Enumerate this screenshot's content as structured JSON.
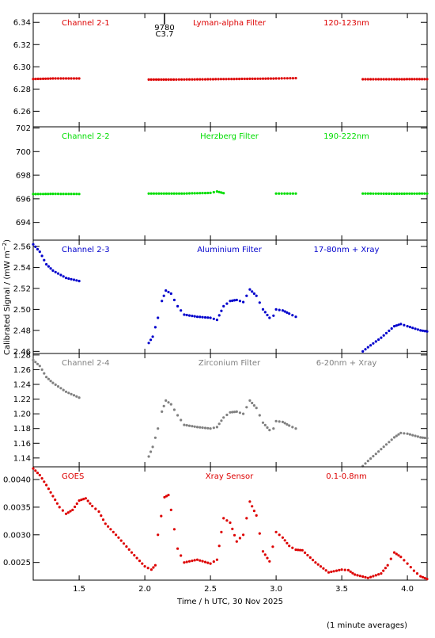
{
  "chart_data": {
    "type": "scatter",
    "x_axis_label": "Time / h UTC, 30 Nov 2025",
    "y_axis_label": "Calibrated Signal / (mW m",
    "y_axis_label_exp": "−2",
    "y_axis_label_end": ")",
    "footnote": "(1 minute averages)",
    "xlim": [
      1.15,
      4.15
    ],
    "x_ticks": [
      1.5,
      2.0,
      2.5,
      3.0,
      3.5,
      4.0
    ],
    "x_tick_labels": [
      "1.5",
      "2.0",
      "2.5",
      "3.0",
      "3.5",
      "4.0"
    ],
    "event_marker": {
      "x": 2.15,
      "label1": "9780",
      "label2": "C3.7"
    },
    "panels": [
      {
        "label": "Channel 2-1",
        "filter": "Lyman-alpha Filter",
        "band": "120-123nm",
        "color": "#dd0000",
        "ylim": [
          6.246,
          6.348
        ],
        "y_ticks": [
          6.26,
          6.28,
          6.3,
          6.32,
          6.34
        ],
        "y_tick_labels": [
          "6.26",
          "6.28",
          "6.30",
          "6.32",
          "6.34"
        ],
        "points": [
          [
            1.15,
            6.289
          ],
          [
            1.3,
            6.2895
          ],
          [
            1.5,
            6.2895
          ],
          [
            2.03,
            6.2885
          ],
          [
            2.2,
            6.2885
          ],
          [
            2.5,
            6.2888
          ],
          [
            2.8,
            6.2892
          ],
          [
            3.0,
            6.2895
          ],
          [
            3.15,
            6.2898
          ],
          [
            3.66,
            6.2888
          ],
          [
            3.9,
            6.2888
          ],
          [
            4.15,
            6.2889
          ]
        ]
      },
      {
        "label": "Channel 2-2",
        "filter": "Herzberg Filter",
        "band": "190-222nm",
        "color": "#00dd00",
        "ylim": [
          692.5,
          702.1
        ],
        "y_ticks": [
          694,
          696,
          698,
          700,
          702
        ],
        "y_tick_labels": [
          "694",
          "696",
          "698",
          "700",
          "702"
        ],
        "points": [
          [
            1.15,
            696.4
          ],
          [
            1.3,
            696.42
          ],
          [
            1.5,
            696.41
          ],
          [
            2.03,
            696.45
          ],
          [
            2.3,
            696.45
          ],
          [
            2.5,
            696.5
          ],
          [
            2.55,
            696.62
          ],
          [
            2.6,
            696.48
          ],
          [
            3.0,
            696.45
          ],
          [
            3.15,
            696.45
          ],
          [
            3.66,
            696.45
          ],
          [
            3.9,
            696.43
          ],
          [
            4.15,
            696.45
          ]
        ]
      },
      {
        "label": "Channel 2-3",
        "filter": "Aluminium Filter",
        "band": "17-80nm + Xray",
        "color": "#0000cc",
        "ylim": [
          2.458,
          2.566
        ],
        "y_ticks": [
          2.46,
          2.48,
          2.5,
          2.52,
          2.54,
          2.56
        ],
        "y_tick_labels": [
          "2.46",
          "2.48",
          "2.50",
          "2.52",
          "2.54",
          "2.56"
        ],
        "points": [
          [
            1.15,
            2.562
          ],
          [
            1.2,
            2.555
          ],
          [
            1.25,
            2.543
          ],
          [
            1.3,
            2.537
          ],
          [
            1.4,
            2.53
          ],
          [
            1.5,
            2.527
          ],
          [
            2.03,
            2.468
          ],
          [
            2.06,
            2.474
          ],
          [
            2.1,
            2.492
          ],
          [
            2.13,
            2.508
          ],
          [
            2.16,
            2.518
          ],
          [
            2.2,
            2.515
          ],
          [
            2.25,
            2.503
          ],
          [
            2.3,
            2.495
          ],
          [
            2.4,
            2.493
          ],
          [
            2.5,
            2.492
          ],
          [
            2.55,
            2.49
          ],
          [
            2.6,
            2.503
          ],
          [
            2.65,
            2.508
          ],
          [
            2.7,
            2.509
          ],
          [
            2.75,
            2.507
          ],
          [
            2.8,
            2.519
          ],
          [
            2.85,
            2.513
          ],
          [
            2.9,
            2.5
          ],
          [
            2.95,
            2.492
          ],
          [
            2.98,
            2.494
          ],
          [
            3.0,
            2.5
          ],
          [
            3.05,
            2.499
          ],
          [
            3.1,
            2.496
          ],
          [
            3.15,
            2.493
          ],
          [
            3.66,
            2.46
          ],
          [
            3.7,
            2.464
          ],
          [
            3.8,
            2.473
          ],
          [
            3.9,
            2.484
          ],
          [
            3.95,
            2.486
          ],
          [
            4.0,
            2.484
          ],
          [
            4.1,
            2.48
          ],
          [
            4.15,
            2.479
          ]
        ]
      },
      {
        "label": "Channel 2-4",
        "filter": "Zirconium Filter",
        "band": "6-20nm + Xray",
        "color": "#808080",
        "ylim": [
          1.128,
          1.282
        ],
        "y_ticks": [
          1.14,
          1.16,
          1.18,
          1.2,
          1.22,
          1.24,
          1.26,
          1.28
        ],
        "y_tick_labels": [
          "1.14",
          "1.16",
          "1.18",
          "1.20",
          "1.22",
          "1.24",
          "1.26",
          "1.28"
        ],
        "points": [
          [
            1.15,
            1.273
          ],
          [
            1.2,
            1.265
          ],
          [
            1.25,
            1.25
          ],
          [
            1.3,
            1.242
          ],
          [
            1.4,
            1.23
          ],
          [
            1.5,
            1.222
          ],
          [
            2.03,
            1.142
          ],
          [
            2.06,
            1.155
          ],
          [
            2.1,
            1.18
          ],
          [
            2.13,
            1.203
          ],
          [
            2.16,
            1.218
          ],
          [
            2.2,
            1.213
          ],
          [
            2.25,
            1.198
          ],
          [
            2.3,
            1.185
          ],
          [
            2.4,
            1.182
          ],
          [
            2.5,
            1.18
          ],
          [
            2.55,
            1.182
          ],
          [
            2.6,
            1.195
          ],
          [
            2.65,
            1.202
          ],
          [
            2.7,
            1.203
          ],
          [
            2.75,
            1.2
          ],
          [
            2.8,
            1.218
          ],
          [
            2.85,
            1.208
          ],
          [
            2.9,
            1.188
          ],
          [
            2.95,
            1.178
          ],
          [
            2.98,
            1.18
          ],
          [
            3.0,
            1.19
          ],
          [
            3.05,
            1.189
          ],
          [
            3.1,
            1.184
          ],
          [
            3.15,
            1.18
          ],
          [
            3.66,
            1.129
          ],
          [
            3.7,
            1.136
          ],
          [
            3.8,
            1.152
          ],
          [
            3.9,
            1.168
          ],
          [
            3.95,
            1.174
          ],
          [
            4.0,
            1.173
          ],
          [
            4.1,
            1.168
          ],
          [
            4.15,
            1.167
          ]
        ]
      },
      {
        "label": "GOES",
        "filter": "Xray Sensor",
        "band": "0.1-0.8nm",
        "color": "#dd0000",
        "ylim": [
          0.00218,
          0.00423
        ],
        "y_ticks": [
          0.0025,
          0.003,
          0.0035,
          0.004
        ],
        "y_tick_labels": [
          "0.0025",
          "0.0030",
          "0.0035",
          "0.0040"
        ],
        "points": [
          [
            1.15,
            0.0042
          ],
          [
            1.2,
            0.00408
          ],
          [
            1.25,
            0.0039
          ],
          [
            1.3,
            0.0037
          ],
          [
            1.35,
            0.0035
          ],
          [
            1.4,
            0.00338
          ],
          [
            1.45,
            0.00345
          ],
          [
            1.5,
            0.00362
          ],
          [
            1.55,
            0.00366
          ],
          [
            1.6,
            0.00352
          ],
          [
            1.65,
            0.00342
          ],
          [
            1.7,
            0.0032
          ],
          [
            1.8,
            0.00295
          ],
          [
            1.9,
            0.00268
          ],
          [
            2.0,
            0.00243
          ],
          [
            2.05,
            0.00237
          ],
          [
            2.08,
            0.00245
          ],
          [
            2.1,
            0.003
          ],
          [
            2.15,
            0.00368
          ],
          [
            2.18,
            0.00372
          ],
          [
            2.2,
            0.00345
          ],
          [
            2.25,
            0.00275
          ],
          [
            2.3,
            0.0025
          ],
          [
            2.4,
            0.00255
          ],
          [
            2.5,
            0.00248
          ],
          [
            2.55,
            0.00255
          ],
          [
            2.6,
            0.0033
          ],
          [
            2.65,
            0.00322
          ],
          [
            2.7,
            0.00288
          ],
          [
            2.75,
            0.003
          ],
          [
            2.8,
            0.0036
          ],
          [
            2.85,
            0.00335
          ],
          [
            2.9,
            0.0027
          ],
          [
            2.95,
            0.00252
          ],
          [
            3.0,
            0.00305
          ],
          [
            3.05,
            0.00295
          ],
          [
            3.1,
            0.0028
          ],
          [
            3.15,
            0.00273
          ],
          [
            3.2,
            0.00272
          ],
          [
            3.3,
            0.0025
          ],
          [
            3.4,
            0.00232
          ],
          [
            3.5,
            0.00237
          ],
          [
            3.55,
            0.00236
          ],
          [
            3.6,
            0.00228
          ],
          [
            3.7,
            0.00222
          ],
          [
            3.8,
            0.0023
          ],
          [
            3.85,
            0.00245
          ],
          [
            3.9,
            0.00268
          ],
          [
            3.95,
            0.0026
          ],
          [
            4.0,
            0.00248
          ],
          [
            4.05,
            0.00235
          ],
          [
            4.1,
            0.00225
          ],
          [
            4.15,
            0.0022
          ]
        ]
      }
    ]
  }
}
